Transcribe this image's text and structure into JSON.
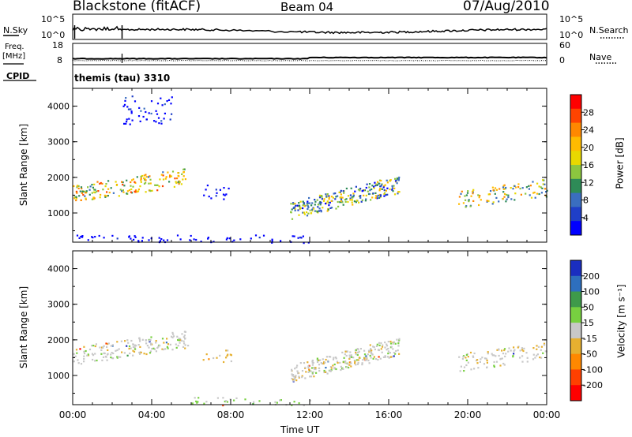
{
  "header": {
    "radar": "Blackstone (fitACF)",
    "beam": "Beam 04",
    "date": "07/Aug/2010"
  },
  "noise_panel": {
    "left_label": "N.Sky",
    "right_label": "N.Search",
    "left_ticks": [
      "10^5",
      "10^0"
    ],
    "right_ticks": [
      "10^5",
      "10^0"
    ]
  },
  "freq_panel": {
    "left_label_top": "Freq.",
    "left_label_bottom": "[MHz]",
    "right_label": "Nave",
    "left_ticks": [
      "18",
      "8"
    ],
    "right_ticks": [
      "60",
      "0"
    ]
  },
  "cpid": {
    "label": "CPID",
    "value": "themis (tau) 3310"
  },
  "power_panel": {
    "ylabel": "Slant Range [km]",
    "y_ticks": [
      "4000",
      "3000",
      "2000",
      "1000"
    ],
    "colorbar_label": "Power [dB]",
    "colorbar_ticks": [
      "28",
      "24",
      "20",
      "16",
      "12",
      "8",
      "4"
    ],
    "colorbar_colors": [
      "#ff0000",
      "#ff4400",
      "#ff8800",
      "#ffbb00",
      "#e8d800",
      "#8cc63f",
      "#2e8b57",
      "#3a6ec0",
      "#1f3fc8",
      "#0000ff"
    ]
  },
  "velocity_panel": {
    "ylabel": "Slant Range [km]",
    "y_ticks": [
      "4000",
      "3000",
      "2000",
      "1000"
    ],
    "colorbar_label": "Velocity [m s⁻¹]",
    "colorbar_ticks": [
      "200",
      "100",
      "50",
      "15",
      "-15",
      "-50",
      "-100",
      "-200"
    ],
    "colorbar_colors": [
      "#1a2ec0",
      "#2e6fbe",
      "#3e9a4a",
      "#77d040",
      "#c8c8c8",
      "#e6b030",
      "#ff8800",
      "#ff4000",
      "#ff0000"
    ]
  },
  "x_axis": {
    "label": "Time UT",
    "ticks": [
      "00:00",
      "04:00",
      "08:00",
      "12:00",
      "16:00",
      "20:00",
      "00:00"
    ]
  },
  "chart_data": {
    "type": "heatmap",
    "title": "Blackstone (fitACF)  Beam 04  07/Aug/2010",
    "xlabel": "Time UT",
    "ylabel": "Slant Range [km]",
    "xlim": [
      "00:00",
      "24:00"
    ],
    "ylim": [
      180,
      4500
    ],
    "panels": [
      {
        "name": "Power",
        "unit": "dB",
        "colorbar_range": [
          0,
          30
        ],
        "echo_regions": [
          {
            "t_start": 0.0,
            "t_end": 5.8,
            "range_start_km": 1200,
            "range_end_km": 2400,
            "power_db": 26
          },
          {
            "t_start": 2.5,
            "t_end": 5.0,
            "range_start_km": 3500,
            "range_end_km": 4300,
            "power_db": 8
          },
          {
            "t_start": 6.5,
            "t_end": 8.0,
            "range_start_km": 1400,
            "range_end_km": 1800,
            "power_db": 6
          },
          {
            "t_start": 11.0,
            "t_end": 16.5,
            "range_start_km": 500,
            "range_end_km": 2400,
            "power_db": 20
          },
          {
            "t_start": 19.5,
            "t_end": 24.0,
            "range_start_km": 1100,
            "range_end_km": 2000,
            "power_db": 24
          },
          {
            "t_start": 0.0,
            "t_end": 12.0,
            "range_start_km": 180,
            "range_end_km": 400,
            "power_db": 4
          }
        ]
      },
      {
        "name": "Velocity",
        "unit": "m s-1",
        "colorbar_range": [
          -200,
          200
        ],
        "echo_regions": [
          {
            "t_start": 0.0,
            "t_end": 5.8,
            "range_start_km": 1200,
            "range_end_km": 2400,
            "velocity": 0
          },
          {
            "t_start": 6.5,
            "t_end": 8.0,
            "range_start_km": 1400,
            "range_end_km": 1800,
            "velocity": -40
          },
          {
            "t_start": 11.0,
            "t_end": 16.5,
            "range_start_km": 500,
            "range_end_km": 2400,
            "velocity": 0
          },
          {
            "t_start": 19.5,
            "t_end": 24.0,
            "range_start_km": 1100,
            "range_end_km": 2000,
            "velocity": 0
          },
          {
            "t_start": 6.0,
            "t_end": 12.0,
            "range_start_km": 180,
            "range_end_km": 400,
            "velocity": 30
          }
        ]
      }
    ]
  }
}
